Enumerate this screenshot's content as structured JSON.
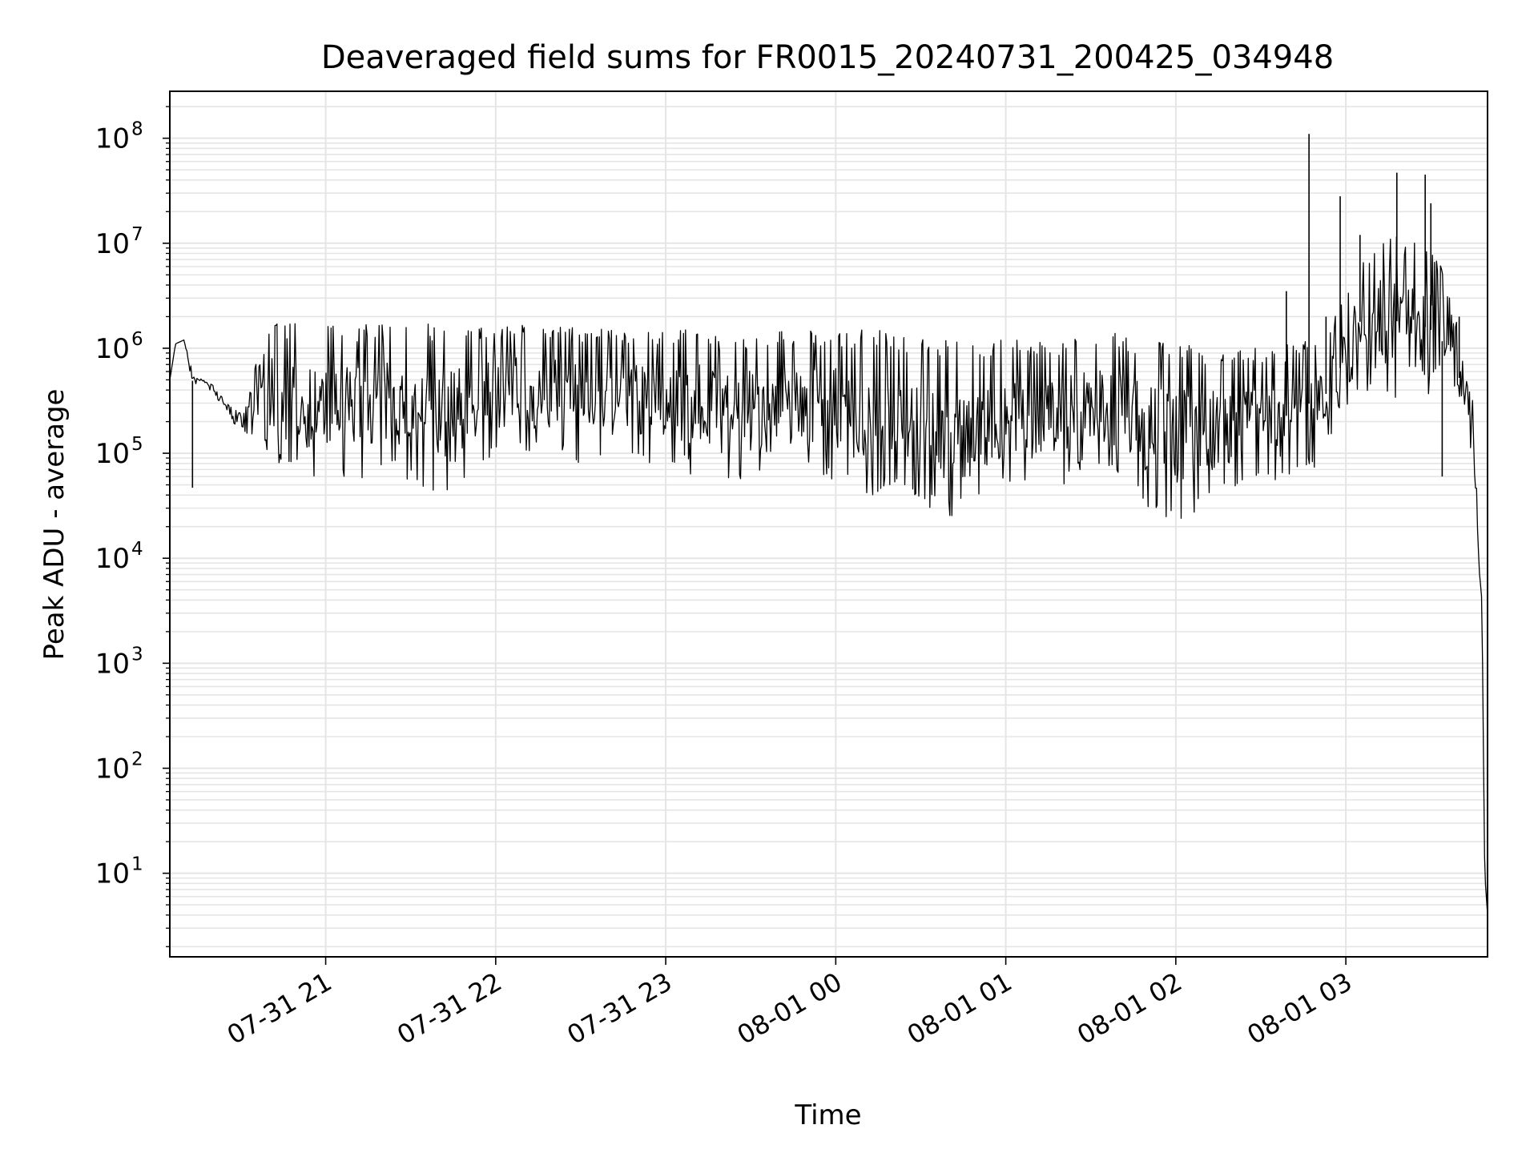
{
  "chart_data": {
    "type": "line",
    "title": "Deaveraged field sums for FR0015_20240731_200425_034948",
    "xlabel": "Time",
    "ylabel": "Peak ADU - average",
    "yscale": "log",
    "ylim": [
      1.6,
      280000000
    ],
    "xlim": [
      "2024-07-31 20:05",
      "2024-08-01 03:50"
    ],
    "grid": true,
    "line_color": "#000000",
    "grid_color": "#e5e5e5",
    "x_ticks": [
      {
        "value": "2024-07-31 21:00",
        "label": "07-31 21"
      },
      {
        "value": "2024-07-31 22:00",
        "label": "07-31 22"
      },
      {
        "value": "2024-07-31 23:00",
        "label": "07-31 23"
      },
      {
        "value": "2024-08-01 00:00",
        "label": "08-01 00"
      },
      {
        "value": "2024-08-01 01:00",
        "label": "08-01 01"
      },
      {
        "value": "2024-08-01 02:00",
        "label": "08-01 02"
      },
      {
        "value": "2024-08-01 03:00",
        "label": "08-01 03"
      }
    ],
    "y_ticks": [
      {
        "value": 10,
        "base": "10",
        "exp": "1"
      },
      {
        "value": 100,
        "base": "10",
        "exp": "2"
      },
      {
        "value": 1000,
        "base": "10",
        "exp": "3"
      },
      {
        "value": 10000,
        "base": "10",
        "exp": "4"
      },
      {
        "value": 100000,
        "base": "10",
        "exp": "5"
      },
      {
        "value": 1000000,
        "base": "10",
        "exp": "6"
      },
      {
        "value": 10000000,
        "base": "10",
        "exp": "7"
      },
      {
        "value": 100000000,
        "base": "10",
        "exp": "8"
      }
    ],
    "series": [
      {
        "x": [
          "2024-07-31 20:05",
          "2024-07-31 20:07",
          "2024-07-31 20:10",
          "2024-07-31 20:13",
          "2024-07-31 20:15",
          "2024-07-31 20:17",
          "2024-07-31 20:20",
          "2024-07-31 20:25",
          "2024-07-31 20:30",
          "2024-07-31 20:35",
          "2024-07-31 20:38",
          "2024-07-31 20:40",
          "2024-07-31 20:43",
          "2024-07-31 20:45",
          "2024-07-31 20:50",
          "2024-07-31 20:55",
          "2024-07-31 21:00",
          "2024-07-31 21:05",
          "2024-07-31 21:10",
          "2024-07-31 21:15",
          "2024-07-31 21:20",
          "2024-07-31 21:25",
          "2024-07-31 21:30",
          "2024-07-31 21:35",
          "2024-07-31 21:40",
          "2024-07-31 21:45",
          "2024-07-31 21:50",
          "2024-07-31 21:55",
          "2024-07-31 22:00",
          "2024-07-31 22:05",
          "2024-07-31 22:10",
          "2024-07-31 22:15",
          "2024-07-31 22:20",
          "2024-07-31 22:25",
          "2024-07-31 22:30",
          "2024-07-31 22:35",
          "2024-07-31 22:40",
          "2024-07-31 22:45",
          "2024-07-31 22:50",
          "2024-07-31 22:55",
          "2024-07-31 23:00",
          "2024-07-31 23:05",
          "2024-07-31 23:10",
          "2024-07-31 23:15",
          "2024-07-31 23:20",
          "2024-07-31 23:25",
          "2024-07-31 23:30",
          "2024-07-31 23:35",
          "2024-07-31 23:40",
          "2024-07-31 23:45",
          "2024-07-31 23:50",
          "2024-07-31 23:55",
          "2024-08-01 00:00",
          "2024-08-01 00:05",
          "2024-08-01 00:10",
          "2024-08-01 00:15",
          "2024-08-01 00:20",
          "2024-08-01 00:25",
          "2024-08-01 00:30",
          "2024-08-01 00:35",
          "2024-08-01 00:40",
          "2024-08-01 00:45",
          "2024-08-01 00:50",
          "2024-08-01 00:55",
          "2024-08-01 01:00",
          "2024-08-01 01:05",
          "2024-08-01 01:10",
          "2024-08-01 01:15",
          "2024-08-01 01:20",
          "2024-08-01 01:25",
          "2024-08-01 01:30",
          "2024-08-01 01:35",
          "2024-08-01 01:40",
          "2024-08-01 01:45",
          "2024-08-01 01:50",
          "2024-08-01 01:55",
          "2024-08-01 02:00",
          "2024-08-01 02:05",
          "2024-08-01 02:10",
          "2024-08-01 02:15",
          "2024-08-01 02:20",
          "2024-08-01 02:25",
          "2024-08-01 02:30",
          "2024-08-01 02:35",
          "2024-08-01 02:40",
          "2024-08-01 02:45",
          "2024-08-01 02:50",
          "2024-08-01 02:55",
          "2024-08-01 03:00",
          "2024-08-01 03:05",
          "2024-08-01 03:10",
          "2024-08-01 03:15",
          "2024-08-01 03:20",
          "2024-08-01 03:25",
          "2024-08-01 03:30",
          "2024-08-01 03:35",
          "2024-08-01 03:38",
          "2024-08-01 03:41",
          "2024-08-01 03:44",
          "2024-08-01 03:46",
          "2024-08-01 03:47",
          "2024-08-01 03:48",
          "2024-08-01 03:49",
          "2024-08-01 03:50"
        ],
        "upper": [
          500000,
          1100000,
          1200000,
          600000,
          550000,
          550000,
          450000,
          300000,
          250000,
          1500000,
          1800000,
          1800000,
          1700000,
          1800000,
          1700000,
          1700000,
          1700000,
          1700000,
          1700000,
          1700000,
          1700000,
          1700000,
          1750000,
          1750000,
          1700000,
          1650000,
          1650000,
          1700000,
          1700000,
          1700000,
          1700000,
          1700000,
          1650000,
          1650000,
          1600000,
          1550000,
          1500000,
          1500000,
          1500000,
          1500000,
          1450000,
          1600000,
          1700000,
          1500000,
          1300000,
          1400000,
          1450000,
          1500000,
          1500000,
          1600000,
          1600000,
          1550000,
          1500000,
          1500000,
          1500000,
          1500000,
          1400000,
          1300000,
          1350000,
          1350000,
          1300000,
          1250000,
          1200000,
          1200000,
          1250000,
          1200000,
          1200000,
          1200000,
          1250000,
          1300000,
          1350000,
          1400000,
          1400000,
          1300000,
          1300000,
          1200000,
          1100000,
          1100000,
          1000000,
          1000000,
          1000000,
          1000000,
          1000000,
          1000000,
          1100000,
          1300000,
          1500000,
          2000000,
          4000000,
          8000000,
          10000000,
          15000000,
          12000000,
          10000000,
          9000000,
          6000000,
          2000000,
          1500000,
          700000,
          100000,
          8000,
          4000,
          10,
          4
        ],
        "lower": [
          500000,
          1100000,
          1200000,
          400000,
          450000,
          450000,
          350000,
          250000,
          150000,
          140000,
          120000,
          90000,
          80000,
          70000,
          60000,
          55000,
          55000,
          55000,
          55000,
          60000,
          60000,
          60000,
          55000,
          45000,
          35000,
          35000,
          60000,
          80000,
          100000,
          100000,
          100000,
          90000,
          85000,
          85000,
          80000,
          80000,
          80000,
          80000,
          80000,
          80000,
          75000,
          70000,
          60000,
          60000,
          50000,
          45000,
          45000,
          50000,
          55000,
          55000,
          60000,
          55000,
          50000,
          40000,
          40000,
          40000,
          50000,
          45000,
          35000,
          28000,
          25000,
          25000,
          30000,
          35000,
          40000,
          45000,
          45000,
          45000,
          50000,
          60000,
          70000,
          60000,
          50000,
          40000,
          30000,
          25000,
          22000,
          25000,
          28000,
          35000,
          45000,
          55000,
          50000,
          45000,
          50000,
          60000,
          70000,
          80000,
          200000,
          400000,
          300000,
          250000,
          250000,
          300000,
          250000,
          200000,
          200000,
          150000,
          100000,
          30000,
          8000,
          4000,
          10,
          4
        ]
      }
    ],
    "spikes": [
      {
        "x": "2024-07-31 20:13",
        "y": 47000
      },
      {
        "x": "2024-08-01 02:39",
        "y": 3500000
      },
      {
        "x": "2024-08-01 02:47",
        "y": 110000000
      },
      {
        "x": "2024-08-01 02:53",
        "y": 2000000
      },
      {
        "x": "2024-08-01 02:58",
        "y": 28000000
      },
      {
        "x": "2024-08-01 03:05",
        "y": 12000000
      },
      {
        "x": "2024-08-01 03:18",
        "y": 47000000
      },
      {
        "x": "2024-08-01 03:28",
        "y": 45000000
      },
      {
        "x": "2024-08-01 03:30",
        "y": 24000000
      },
      {
        "x": "2024-08-01 03:34",
        "y": 60000
      },
      {
        "x": "2024-08-01 03:40",
        "y": 2000000
      }
    ]
  }
}
